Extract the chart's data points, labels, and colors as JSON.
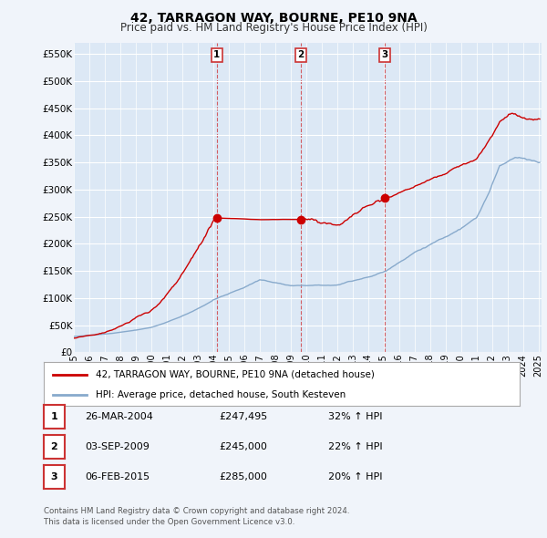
{
  "title": "42, TARRAGON WAY, BOURNE, PE10 9NA",
  "subtitle": "Price paid vs. HM Land Registry's House Price Index (HPI)",
  "legend_line1": "42, TARRAGON WAY, BOURNE, PE10 9NA (detached house)",
  "legend_line2": "HPI: Average price, detached house, South Kesteven",
  "sale_color": "#cc0000",
  "hpi_color": "#88aacc",
  "yticks": [
    0,
    50000,
    100000,
    150000,
    200000,
    250000,
    300000,
    350000,
    400000,
    450000,
    500000,
    550000
  ],
  "ytick_labels": [
    "£0",
    "£50K",
    "£100K",
    "£150K",
    "£200K",
    "£250K",
    "£300K",
    "£350K",
    "£400K",
    "£450K",
    "£500K",
    "£550K"
  ],
  "sales": [
    {
      "date_num": 2004.23,
      "price": 247495,
      "label": "1"
    },
    {
      "date_num": 2009.67,
      "price": 245000,
      "label": "2"
    },
    {
      "date_num": 2015.09,
      "price": 285000,
      "label": "3"
    }
  ],
  "table_rows": [
    {
      "num": "1",
      "date": "26-MAR-2004",
      "price": "£247,495",
      "pct": "32% ↑ HPI"
    },
    {
      "num": "2",
      "date": "03-SEP-2009",
      "price": "£245,000",
      "pct": "22% ↑ HPI"
    },
    {
      "num": "3",
      "date": "06-FEB-2015",
      "price": "£285,000",
      "pct": "20% ↑ HPI"
    }
  ],
  "footer1": "Contains HM Land Registry data © Crown copyright and database right 2024.",
  "footer2": "This data is licensed under the Open Government Licence v3.0.",
  "background_color": "#f0f4fa",
  "plot_bg_color": "#dce8f5",
  "border_color": "#aabbcc"
}
